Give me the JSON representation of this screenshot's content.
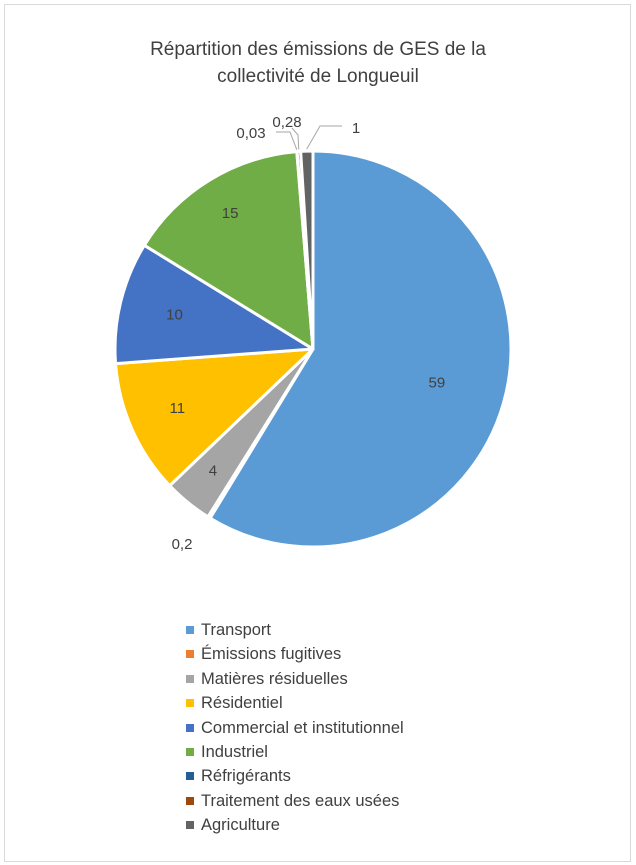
{
  "chart_data": {
    "type": "pie",
    "title_lines": [
      "Répartition des émissions de GES de la",
      "collectivité de Longueuil"
    ],
    "start_angle_deg": 0,
    "direction": "clockwise",
    "legend_position": "bottom",
    "slices": [
      {
        "name": "Transport",
        "value": 59,
        "label": "59",
        "color": "#5b9bd5"
      },
      {
        "name": "Émissions fugitives",
        "value": 0.2,
        "label": "0,2",
        "color": "#ed7d31"
      },
      {
        "name": "Matières résiduelles",
        "value": 4,
        "label": "4",
        "color": "#a5a5a5"
      },
      {
        "name": "Résidentiel",
        "value": 11,
        "label": "11",
        "color": "#ffc000"
      },
      {
        "name": "Commercial et institutionnel",
        "value": 10,
        "label": "10",
        "color": "#4472c4"
      },
      {
        "name": "Industriel",
        "value": 15,
        "label": "15",
        "color": "#70ad47"
      },
      {
        "name": "Réfrigérants",
        "value": 0.03,
        "label": "0,03",
        "color": "#255e91"
      },
      {
        "name": "Traitement des eaux usées",
        "value": 0.28,
        "label": "0,28",
        "color": "#9e480e"
      },
      {
        "name": "Agriculture",
        "value": 1,
        "label": "1",
        "color": "#636363"
      }
    ]
  }
}
